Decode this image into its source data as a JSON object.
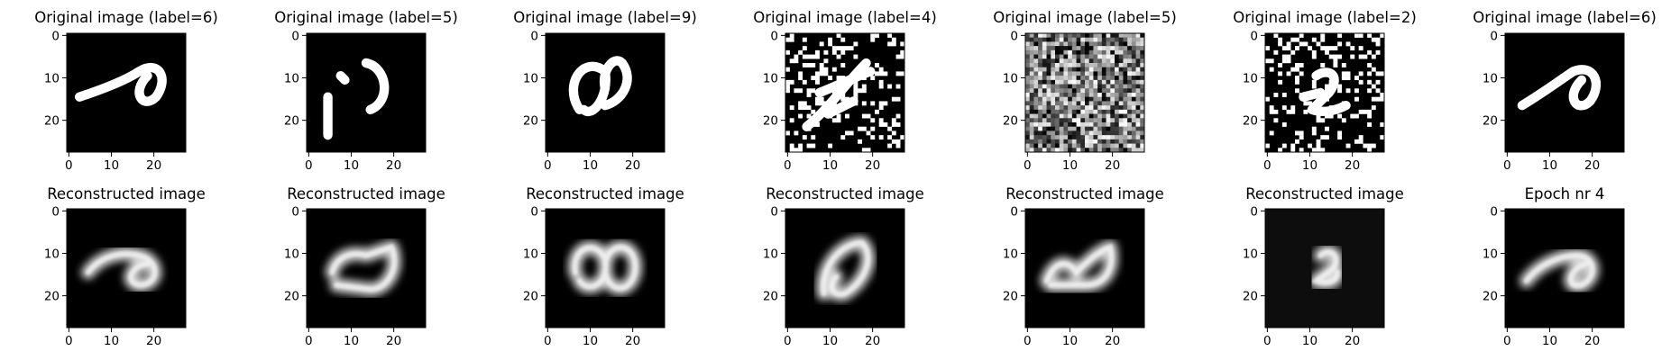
{
  "figure": {
    "columns": [
      {
        "top_title": "Original image (label=6)",
        "bottom_title": "Reconstructed image",
        "top_kind": "clean",
        "bottom_kind": "blur"
      },
      {
        "top_title": "Original image (label=5)",
        "bottom_title": "Reconstructed image",
        "top_kind": "clean",
        "bottom_kind": "blur"
      },
      {
        "top_title": "Original image (label=9)",
        "bottom_title": "Reconstructed image",
        "top_kind": "clean",
        "bottom_kind": "blur"
      },
      {
        "top_title": "Original image (label=4)",
        "bottom_title": "Reconstructed image",
        "top_kind": "noise-binary",
        "bottom_kind": "blur"
      },
      {
        "top_title": "Original image (label=5)",
        "bottom_title": "Reconstructed image",
        "top_kind": "noise-gray",
        "bottom_kind": "blur"
      },
      {
        "top_title": "Original image (label=2)",
        "bottom_title": "Reconstructed image",
        "top_kind": "noise-binary",
        "bottom_kind": "blur"
      },
      {
        "top_title": "Original image (label=6)",
        "bottom_title": "Epoch nr 4",
        "top_kind": "clean",
        "bottom_kind": "blur"
      }
    ],
    "x_ticks": [
      "0",
      "10",
      "20"
    ],
    "y_ticks": [
      "0",
      "10",
      "20"
    ],
    "colors": {
      "image_bg": "#000000",
      "stroke": "#ffffff",
      "axes": "#000000"
    }
  }
}
